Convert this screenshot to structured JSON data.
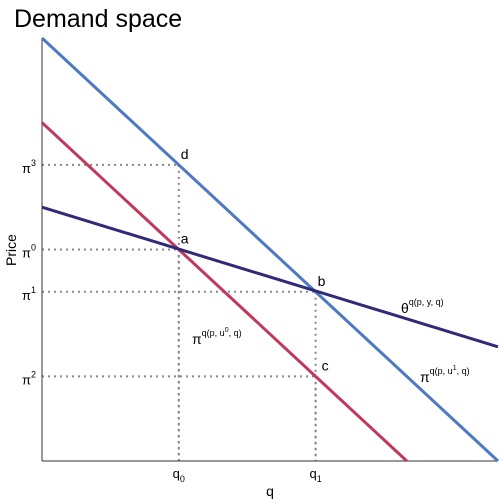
{
  "chart_data": {
    "type": "line",
    "title": "Demand space",
    "xlabel": "q",
    "ylabel": "Price",
    "xlim": [
      0,
      10
    ],
    "ylim": [
      0,
      10
    ],
    "x_ticks": [
      {
        "value": 3.0,
        "base": "q",
        "sub": "0"
      },
      {
        "value": 6.0,
        "base": "q",
        "sub": "1"
      }
    ],
    "y_ticks": [
      {
        "value": 7.0,
        "base": "π",
        "sup": "3"
      },
      {
        "value": 5.0,
        "base": "π",
        "sup": "0"
      },
      {
        "value": 4.0,
        "base": "π",
        "sup": "1"
      },
      {
        "value": 2.0,
        "base": "π",
        "sup": "2"
      }
    ],
    "series": [
      {
        "key": "conditional_u1",
        "color": "#4e79c4",
        "x": [
          0,
          10
        ],
        "y": [
          10,
          0
        ],
        "label": {
          "base": "π",
          "sup": "q(p, u",
          "sup2": "1",
          "sup3": ", q)"
        }
      },
      {
        "key": "conditional_u0",
        "color": "#c0395a",
        "x": [
          0,
          8
        ],
        "y": [
          8,
          0
        ],
        "label": {
          "base": "π",
          "sup": "q(p, u",
          "sup2": "0",
          "sup3": ", q)"
        }
      },
      {
        "key": "marshallian",
        "color": "#302a78",
        "x": [
          0,
          10
        ],
        "y": [
          6,
          2.7
        ],
        "label": {
          "base": "θ",
          "sup": "q(p, y, q)"
        }
      }
    ],
    "points": [
      {
        "name": "d",
        "x": 3.0,
        "y": 7.0
      },
      {
        "name": "a",
        "x": 3.0,
        "y": 5.0
      },
      {
        "name": "b",
        "x": 6.0,
        "y": 4.0
      },
      {
        "name": "c",
        "x": 6.0,
        "y": 2.0
      }
    ],
    "guides": [
      {
        "x": 3.0,
        "y": 7.0
      },
      {
        "x": 3.0,
        "y": 5.0
      },
      {
        "x": 6.0,
        "y": 4.0
      },
      {
        "x": 6.0,
        "y": 2.0
      }
    ],
    "grid": false,
    "axis_color": "#333333",
    "guide_color": "#888888"
  }
}
